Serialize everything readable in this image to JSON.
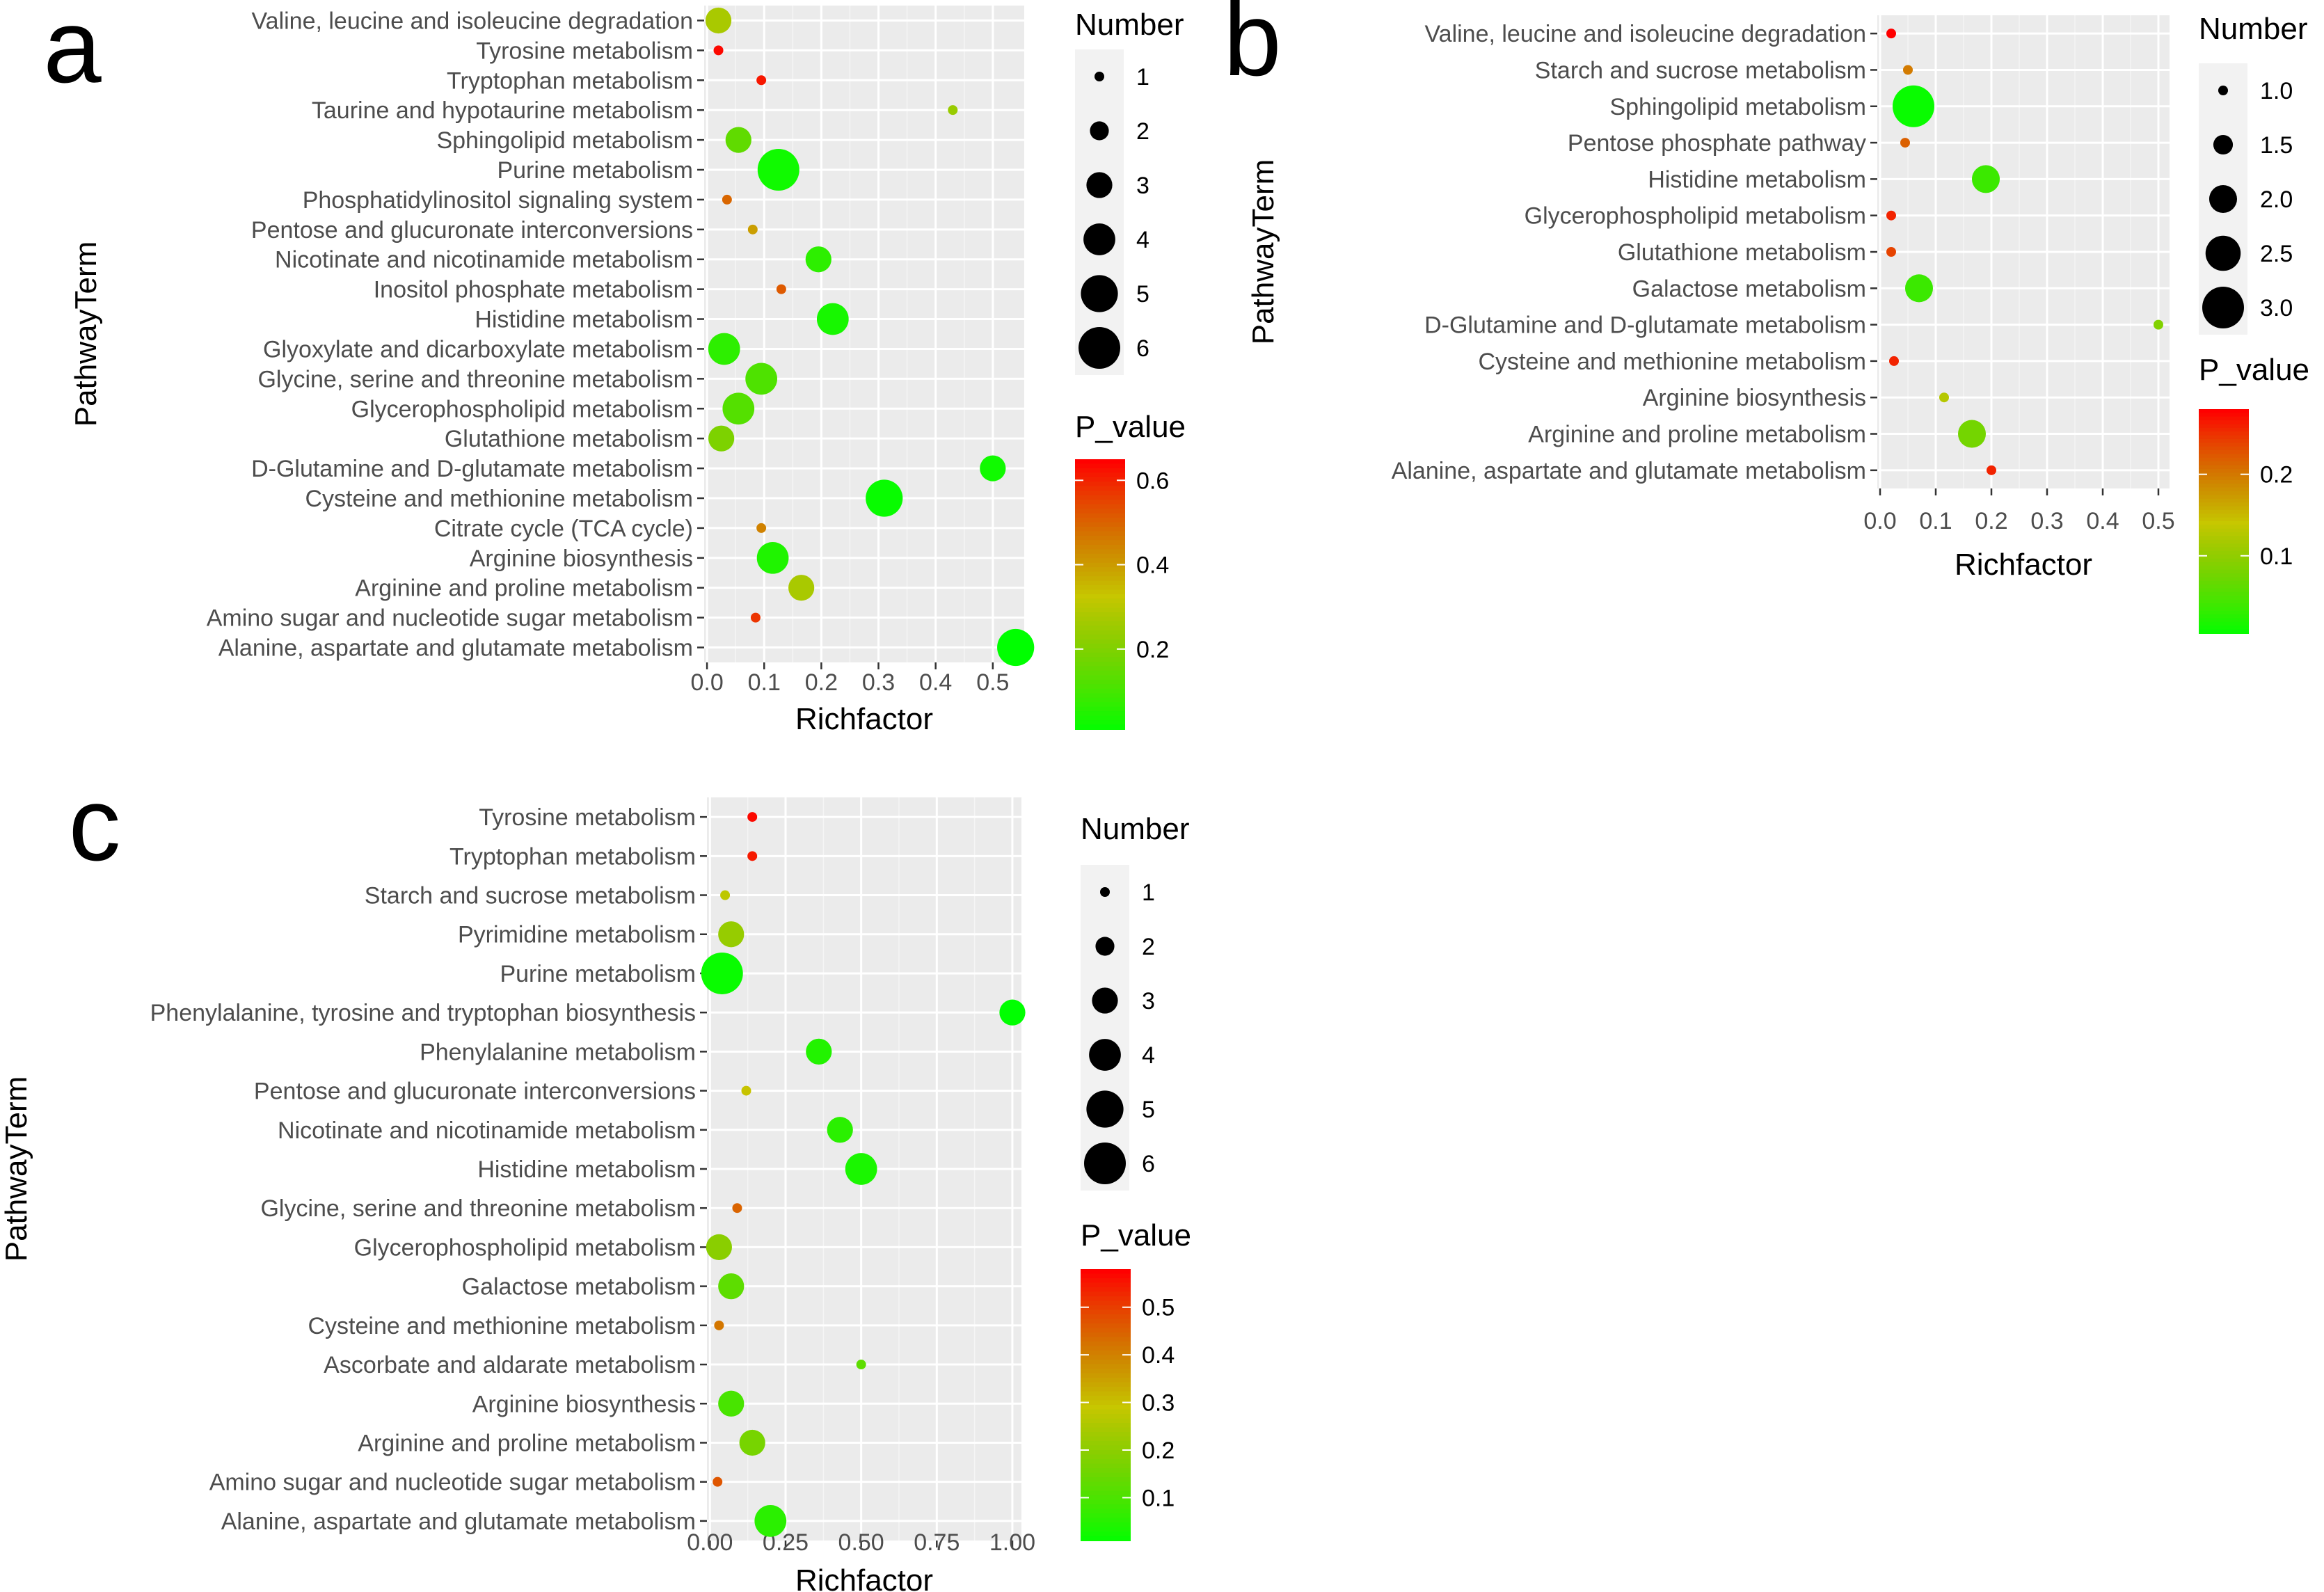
{
  "colors": {
    "panel_bg": "#EBEBEB",
    "legend_key_bg": "#F2F2F2",
    "low": "#00FF00",
    "high": "#FF0000"
  },
  "legend_titles": {
    "size": "Number",
    "color": "P_value"
  },
  "chart_data": [
    {
      "id": "a",
      "type": "scatter",
      "panel_label": "a",
      "xlabel": "Richfactor",
      "ylabel": "PathwayTerm",
      "xlim": [
        -0.005,
        0.555
      ],
      "xticks": [
        0.0,
        0.1,
        0.2,
        0.3,
        0.4,
        0.5
      ],
      "xtick_labels": [
        "0.0",
        "0.1",
        "0.2",
        "0.3",
        "0.4",
        "0.5"
      ],
      "size_legend": {
        "values": [
          1,
          2,
          3,
          4,
          5,
          6
        ],
        "labels": [
          "1",
          "2",
          "3",
          "4",
          "5",
          "6"
        ]
      },
      "size_range": [
        1,
        6
      ],
      "color_range": [
        0.01,
        0.65
      ],
      "color_mid": 0.33,
      "color_ticks": [
        0.2,
        0.4,
        0.6
      ],
      "color_tick_labels": [
        "0.2",
        "0.4",
        "0.6"
      ],
      "points": [
        {
          "term": "Valine, leucine and isoleucine degradation",
          "richfactor": 0.02,
          "number": 3,
          "p_value": 0.28
        },
        {
          "term": "Tyrosine metabolism",
          "richfactor": 0.02,
          "number": 1,
          "p_value": 0.64
        },
        {
          "term": "Tryptophan metabolism",
          "richfactor": 0.095,
          "number": 1,
          "p_value": 0.62
        },
        {
          "term": "Taurine and hypotaurine metabolism",
          "richfactor": 0.43,
          "number": 1,
          "p_value": 0.25
        },
        {
          "term": "Sphingolipid metabolism",
          "richfactor": 0.055,
          "number": 3,
          "p_value": 0.15
        },
        {
          "term": "Purine metabolism",
          "richfactor": 0.125,
          "number": 6,
          "p_value": 0.03
        },
        {
          "term": "Phosphatidylinositol signaling system",
          "richfactor": 0.035,
          "number": 1,
          "p_value": 0.5
        },
        {
          "term": "Pentose and glucuronate interconversions",
          "richfactor": 0.08,
          "number": 1,
          "p_value": 0.4
        },
        {
          "term": "Nicotinate and nicotinamide metabolism",
          "richfactor": 0.195,
          "number": 3,
          "p_value": 0.07
        },
        {
          "term": "Inositol phosphate metabolism",
          "richfactor": 0.13,
          "number": 1,
          "p_value": 0.52
        },
        {
          "term": "Histidine metabolism",
          "richfactor": 0.22,
          "number": 4,
          "p_value": 0.04
        },
        {
          "term": "Glyoxylate and dicarboxylate metabolism",
          "richfactor": 0.03,
          "number": 4,
          "p_value": 0.07
        },
        {
          "term": "Glycine, serine and threonine metabolism",
          "richfactor": 0.095,
          "number": 4,
          "p_value": 0.12
        },
        {
          "term": "Glycerophospholipid metabolism",
          "richfactor": 0.055,
          "number": 4,
          "p_value": 0.13
        },
        {
          "term": "Glutathione metabolism",
          "richfactor": 0.025,
          "number": 3,
          "p_value": 0.2
        },
        {
          "term": "D-Glutamine and D-glutamate metabolism",
          "richfactor": 0.5,
          "number": 3,
          "p_value": 0.03
        },
        {
          "term": "Cysteine and methionine metabolism",
          "richfactor": 0.31,
          "number": 5,
          "p_value": 0.02
        },
        {
          "term": "Citrate cycle (TCA cycle)",
          "richfactor": 0.095,
          "number": 1,
          "p_value": 0.45
        },
        {
          "term": "Arginine biosynthesis",
          "richfactor": 0.115,
          "number": 4,
          "p_value": 0.05
        },
        {
          "term": "Arginine and proline metabolism",
          "richfactor": 0.165,
          "number": 3,
          "p_value": 0.28
        },
        {
          "term": "Amino sugar and nucleotide sugar metabolism",
          "richfactor": 0.085,
          "number": 1,
          "p_value": 0.58
        },
        {
          "term": "Alanine, aspartate and glutamate metabolism",
          "richfactor": 0.54,
          "number": 5,
          "p_value": 0.01
        }
      ]
    },
    {
      "id": "b",
      "type": "scatter",
      "panel_label": "b",
      "xlabel": "Richfactor",
      "ylabel": "PathwayTerm",
      "xlim": [
        -0.005,
        0.52
      ],
      "xticks": [
        0.0,
        0.1,
        0.2,
        0.3,
        0.4,
        0.5
      ],
      "xtick_labels": [
        "0.0",
        "0.1",
        "0.2",
        "0.3",
        "0.4",
        "0.5"
      ],
      "size_legend": {
        "values": [
          1.0,
          1.5,
          2.0,
          2.5,
          3.0
        ],
        "labels": [
          "1.0",
          "1.5",
          "2.0",
          "2.5",
          "3.0"
        ]
      },
      "size_range": [
        1,
        3
      ],
      "color_range": [
        0.005,
        0.28
      ],
      "color_mid": 0.14,
      "color_ticks": [
        0.1,
        0.2
      ],
      "color_tick_labels": [
        "0.1",
        "0.2"
      ],
      "points": [
        {
          "term": "Valine, leucine and isoleucine degradation",
          "richfactor": 0.02,
          "number": 1,
          "p_value": 0.28
        },
        {
          "term": "Starch and sucrose metabolism",
          "richfactor": 0.05,
          "number": 1,
          "p_value": 0.2
        },
        {
          "term": "Sphingolipid metabolism",
          "richfactor": 0.06,
          "number": 3,
          "p_value": 0.01
        },
        {
          "term": "Pentose phosphate pathway",
          "richfactor": 0.045,
          "number": 1,
          "p_value": 0.22
        },
        {
          "term": "Histidine metabolism",
          "richfactor": 0.19,
          "number": 2,
          "p_value": 0.04
        },
        {
          "term": "Glycerophospholipid metabolism",
          "richfactor": 0.02,
          "number": 1,
          "p_value": 0.26
        },
        {
          "term": "Glutathione metabolism",
          "richfactor": 0.02,
          "number": 1,
          "p_value": 0.24
        },
        {
          "term": "Galactose metabolism",
          "richfactor": 0.07,
          "number": 2,
          "p_value": 0.04
        },
        {
          "term": "D-Glutamine and D-glutamate metabolism",
          "richfactor": 0.5,
          "number": 1,
          "p_value": 0.09
        },
        {
          "term": "Cysteine and methionine metabolism",
          "richfactor": 0.025,
          "number": 1,
          "p_value": 0.26
        },
        {
          "term": "Arginine biosynthesis",
          "richfactor": 0.115,
          "number": 1,
          "p_value": 0.13
        },
        {
          "term": "Arginine and proline metabolism",
          "richfactor": 0.165,
          "number": 2,
          "p_value": 0.08
        },
        {
          "term": "Alanine, aspartate and glutamate metabolism",
          "richfactor": 0.2,
          "number": 1,
          "p_value": 0.26
        }
      ]
    },
    {
      "id": "c",
      "type": "scatter",
      "panel_label": "c",
      "xlabel": "Richfactor",
      "ylabel": "PathwayTerm",
      "xlim": [
        -0.01,
        1.03
      ],
      "xticks": [
        0.0,
        0.25,
        0.5,
        0.75,
        1.0
      ],
      "xtick_labels": [
        "0.00",
        "0.25",
        "0.50",
        "0.75",
        "1.00"
      ],
      "size_legend": {
        "values": [
          1,
          2,
          3,
          4,
          5,
          6
        ],
        "labels": [
          "1",
          "2",
          "3",
          "4",
          "5",
          "6"
        ]
      },
      "size_range": [
        1,
        6
      ],
      "color_range": [
        0.01,
        0.58
      ],
      "color_mid": 0.3,
      "color_ticks": [
        0.1,
        0.2,
        0.3,
        0.4,
        0.5
      ],
      "color_tick_labels": [
        "0.1",
        "0.2",
        "0.3",
        "0.4",
        "0.5"
      ],
      "points": [
        {
          "term": "Tyrosine metabolism",
          "richfactor": 0.14,
          "number": 1,
          "p_value": 0.57
        },
        {
          "term": "Tryptophan metabolism",
          "richfactor": 0.14,
          "number": 1,
          "p_value": 0.55
        },
        {
          "term": "Starch and sucrose metabolism",
          "richfactor": 0.05,
          "number": 1,
          "p_value": 0.28
        },
        {
          "term": "Pyrimidine metabolism",
          "richfactor": 0.07,
          "number": 3,
          "p_value": 0.22
        },
        {
          "term": "Purine metabolism",
          "richfactor": 0.04,
          "number": 6,
          "p_value": 0.02
        },
        {
          "term": "Phenylalanine, tyrosine and tryptophan biosynthesis",
          "richfactor": 1.0,
          "number": 3,
          "p_value": 0.01
        },
        {
          "term": "Phenylalanine metabolism",
          "richfactor": 0.36,
          "number": 3,
          "p_value": 0.05
        },
        {
          "term": "Pentose and glucuronate interconversions",
          "richfactor": 0.12,
          "number": 1,
          "p_value": 0.3
        },
        {
          "term": "Nicotinate and nicotinamide metabolism",
          "richfactor": 0.43,
          "number": 3,
          "p_value": 0.06
        },
        {
          "term": "Histidine metabolism",
          "richfactor": 0.5,
          "number": 4,
          "p_value": 0.04
        },
        {
          "term": "Glycine, serine and threonine metabolism",
          "richfactor": 0.09,
          "number": 1,
          "p_value": 0.45
        },
        {
          "term": "Glycerophospholipid metabolism",
          "richfactor": 0.03,
          "number": 3,
          "p_value": 0.2
        },
        {
          "term": "Galactose metabolism",
          "richfactor": 0.07,
          "number": 3,
          "p_value": 0.13
        },
        {
          "term": "Cysteine and methionine metabolism",
          "richfactor": 0.03,
          "number": 1,
          "p_value": 0.42
        },
        {
          "term": "Ascorbate and aldarate metabolism",
          "richfactor": 0.5,
          "number": 1,
          "p_value": 0.13
        },
        {
          "term": "Arginine biosynthesis",
          "richfactor": 0.07,
          "number": 3,
          "p_value": 0.1
        },
        {
          "term": "Arginine and proline metabolism",
          "richfactor": 0.14,
          "number": 3,
          "p_value": 0.17
        },
        {
          "term": "Amino sugar and nucleotide sugar metabolism",
          "richfactor": 0.025,
          "number": 1,
          "p_value": 0.47
        },
        {
          "term": "Alanine, aspartate and glutamate metabolism",
          "richfactor": 0.2,
          "number": 4,
          "p_value": 0.06
        }
      ]
    }
  ]
}
